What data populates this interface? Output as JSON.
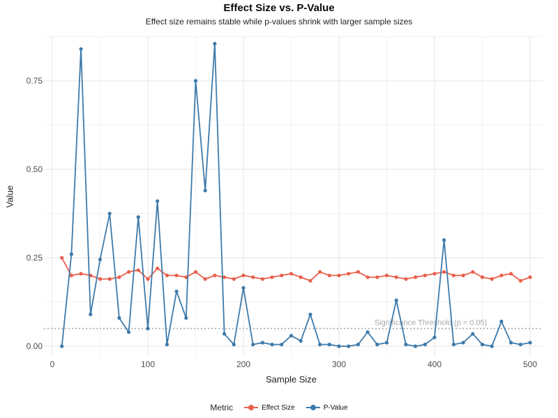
{
  "title": "Effect Size vs. P-Value",
  "subtitle": "Effect size remains stable while p-values shrink with larger sample sizes",
  "axes": {
    "xlabel": "Sample Size",
    "ylabel": "Value"
  },
  "legend": {
    "title": "Metric",
    "entries": [
      {
        "label": "Effect Size",
        "color": "#e8604d"
      },
      {
        "label": "P-Value",
        "color": "#3d7aab"
      }
    ]
  },
  "threshold": {
    "value": 0.05,
    "label": "Significance Threshold (p = 0.05)",
    "color": "#a8a8a8"
  },
  "colors": {
    "grid_major": "#e5e5e5",
    "grid_minor": "#f2f2f2",
    "tick_text": "#4d4d4d"
  },
  "chart_data": {
    "type": "line",
    "title": "Effect Size vs. P-Value",
    "subtitle": "Effect size remains stable while p-values shrink with larger sample sizes",
    "xlabel": "Sample Size",
    "ylabel": "Value",
    "xlim": [
      0,
      510
    ],
    "ylim": [
      -0.02,
      0.88
    ],
    "xticks": [
      0,
      100,
      200,
      300,
      400,
      500
    ],
    "yticks": [
      0,
      0.25,
      0.5,
      0.75
    ],
    "ytick_labels": [
      "0.00",
      "0.25",
      "0.50",
      "0.75"
    ],
    "xticks_minor": [
      50,
      150,
      250,
      350,
      450
    ],
    "yticks_minor": [
      0.125,
      0.375,
      0.625,
      0.875
    ],
    "grid": true,
    "legend_position": "bottom",
    "threshold": {
      "value": 0.05,
      "label": "Significance Threshold (p = 0.05)"
    },
    "x": [
      10,
      20,
      30,
      40,
      50,
      60,
      70,
      80,
      90,
      100,
      110,
      120,
      130,
      140,
      150,
      160,
      170,
      180,
      190,
      200,
      210,
      220,
      230,
      240,
      250,
      260,
      270,
      280,
      290,
      300,
      310,
      320,
      330,
      340,
      350,
      360,
      370,
      380,
      390,
      400,
      410,
      420,
      430,
      440,
      450,
      460,
      470,
      480,
      490,
      500
    ],
    "series": [
      {
        "name": "Effect Size",
        "color": "#e8604d",
        "values": [
          0.25,
          0.2,
          0.205,
          0.2,
          0.19,
          0.19,
          0.195,
          0.21,
          0.215,
          0.19,
          0.22,
          0.2,
          0.2,
          0.195,
          0.21,
          0.19,
          0.2,
          0.195,
          0.19,
          0.2,
          0.195,
          0.19,
          0.195,
          0.2,
          0.205,
          0.195,
          0.185,
          0.21,
          0.2,
          0.2,
          0.205,
          0.21,
          0.195,
          0.195,
          0.2,
          0.195,
          0.19,
          0.195,
          0.2,
          0.205,
          0.21,
          0.2,
          0.2,
          0.21,
          0.195,
          0.19,
          0.2,
          0.205,
          0.185,
          0.195
        ]
      },
      {
        "name": "P-Value",
        "color": "#3d7aab",
        "values": [
          0.0,
          0.26,
          0.84,
          0.09,
          0.245,
          0.375,
          0.08,
          0.04,
          0.365,
          0.05,
          0.41,
          0.005,
          0.155,
          0.08,
          0.75,
          0.44,
          0.855,
          0.035,
          0.005,
          0.165,
          0.005,
          0.01,
          0.005,
          0.005,
          0.03,
          0.015,
          0.09,
          0.005,
          0.005,
          0.0,
          0.0,
          0.005,
          0.04,
          0.005,
          0.01,
          0.13,
          0.005,
          0.0,
          0.005,
          0.025,
          0.3,
          0.005,
          0.01,
          0.035,
          0.005,
          0.0,
          0.07,
          0.01,
          0.005,
          0.01
        ]
      }
    ]
  }
}
